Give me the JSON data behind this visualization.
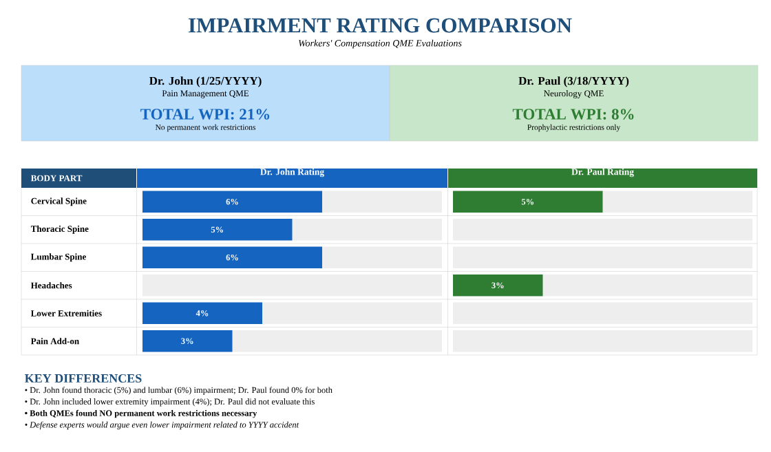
{
  "chart_data": [
    {
      "type": "other",
      "title": "IMPAIRMENT RATING COMPARISON",
      "subtitle": "Workers' Compensation QME Evaluations",
      "annotations": [
        "Dr. John (1/25/YYYY)",
        "Pain Management QME",
        "TOTAL WPI: 21%",
        "No permanent work restrictions",
        "Dr. Paul (3/18/YYYY)",
        "Neurology QME",
        "TOTAL WPI: 8%",
        "Prophylactic restrictions only"
      ]
    },
    {
      "type": "bar",
      "orientation": "horizontal",
      "title": "Dr. John Rating",
      "ylabel": "BODY PART",
      "categories": [
        "Cervical Spine",
        "Thoracic Spine",
        "Lumbar Spine",
        "Headaches",
        "Lower Extremities",
        "Pain Add-on"
      ],
      "stacked": true,
      "series": [
        {
          "color": "#1565c0",
          "values": [
            6,
            5,
            6,
            0,
            4,
            3
          ],
          "value_labels": [
            "6%",
            "5%",
            "6%",
            null,
            "4%",
            "3%"
          ]
        },
        {
          "color": "#eeeeee",
          "values": [
            4,
            5,
            4,
            10,
            6,
            7
          ]
        }
      ],
      "xlim": [
        0,
        10
      ],
      "tick_labels": "y"
    },
    {
      "type": "bar",
      "orientation": "horizontal",
      "title": "Dr. Paul Rating",
      "categories": [
        null,
        null,
        null,
        null,
        null,
        null
      ],
      "stacked": true,
      "series": [
        {
          "color": "#2e7d32",
          "values": [
            5,
            0,
            0,
            3,
            0,
            0
          ],
          "value_labels": [
            "5%",
            null,
            null,
            "3%",
            null,
            null
          ]
        },
        {
          "color": "#eeeeee",
          "values": [
            5,
            10,
            10,
            7,
            10,
            10
          ]
        }
      ],
      "xlim": [
        0,
        10
      ],
      "tick_labels": false
    },
    {
      "type": "other",
      "title": "KEY DIFFERENCES",
      "annotations": [
        "• Dr. John found thoracic (5%) and lumbar (6%) impairment; Dr. Paul found 0% for both",
        "• Dr. John included lower extremity impairment (4%); Dr. Paul did not evaluate this",
        "• Both QMEs found NO permanent work restrictions necessary",
        "• Defense experts would argue even lower impairment related to YYYY accident"
      ]
    }
  ]
}
